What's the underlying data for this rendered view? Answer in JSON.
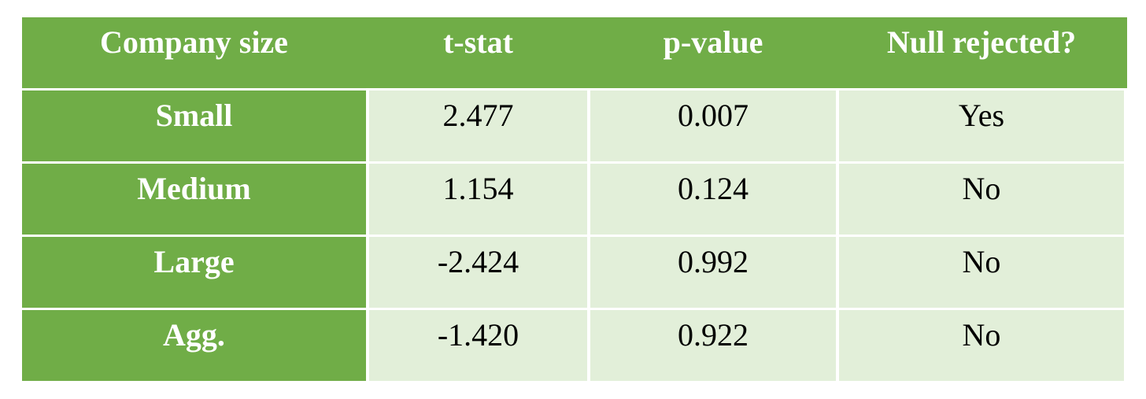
{
  "chart_data": {
    "type": "table",
    "columns": [
      "Company size",
      "t-stat",
      "p-value",
      "Null rejected?"
    ],
    "rows": [
      [
        "Small",
        "2.477",
        "0.007",
        "Yes"
      ],
      [
        "Medium",
        "1.154",
        "0.124",
        "No"
      ],
      [
        "Large",
        "-2.424",
        "0.992",
        "No"
      ],
      [
        "Agg.",
        "-1.420",
        "0.922",
        "No"
      ]
    ],
    "title": "",
    "legend": "none",
    "grid": "white lines between cells"
  },
  "table": {
    "headers": {
      "company_size": "Company size",
      "t_stat": "t-stat",
      "p_value": "p-value",
      "null_rejected": "Null rejected?"
    },
    "rows": [
      {
        "label": "Small",
        "t_stat": "2.477",
        "p_value": "0.007",
        "null_rejected": "Yes"
      },
      {
        "label": "Medium",
        "t_stat": "1.154",
        "p_value": "0.124",
        "null_rejected": "No"
      },
      {
        "label": "Large",
        "t_stat": "-2.424",
        "p_value": "0.992",
        "null_rejected": "No"
      },
      {
        "label": "Agg.",
        "t_stat": "-1.420",
        "p_value": "0.922",
        "null_rejected": "No"
      }
    ]
  },
  "colors": {
    "header_green": "#70AD47",
    "cell_light_green": "#E2EFD9",
    "header_text": "#FFFFFF",
    "cell_text": "#000000",
    "grid_line": "#FFFFFF",
    "page_background": "#FFFFFF"
  }
}
